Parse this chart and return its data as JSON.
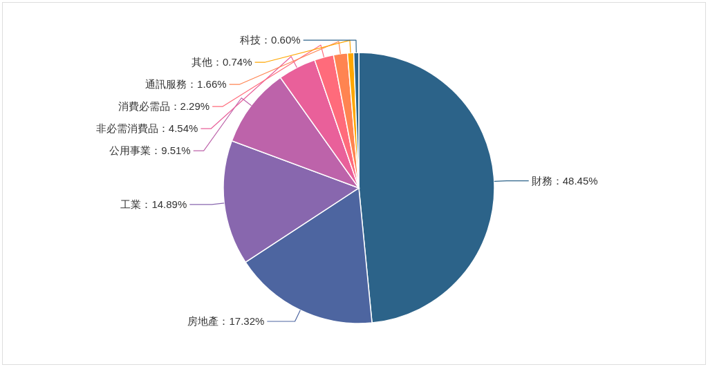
{
  "chart_data": {
    "type": "pie",
    "categories": [
      "財務",
      "房地產",
      "工業",
      "公用事業",
      "非必需消費品",
      "消費必需品",
      "通訊服務",
      "其他",
      "科技"
    ],
    "values": [
      48.45,
      17.32,
      14.89,
      9.51,
      4.54,
      2.29,
      1.66,
      0.74,
      0.6
    ],
    "colors": [
      "#2c6389",
      "#4d65a0",
      "#8867ae",
      "#bd63aa",
      "#e9609a",
      "#ff6b7b",
      "#ff8451",
      "#ffa600",
      "#2c6389"
    ],
    "value_labels": [
      "48.45%",
      "17.32%",
      "14.89%",
      "9.51%",
      "4.54%",
      "2.29%",
      "1.66%",
      "0.74%",
      "0.60%"
    ]
  }
}
